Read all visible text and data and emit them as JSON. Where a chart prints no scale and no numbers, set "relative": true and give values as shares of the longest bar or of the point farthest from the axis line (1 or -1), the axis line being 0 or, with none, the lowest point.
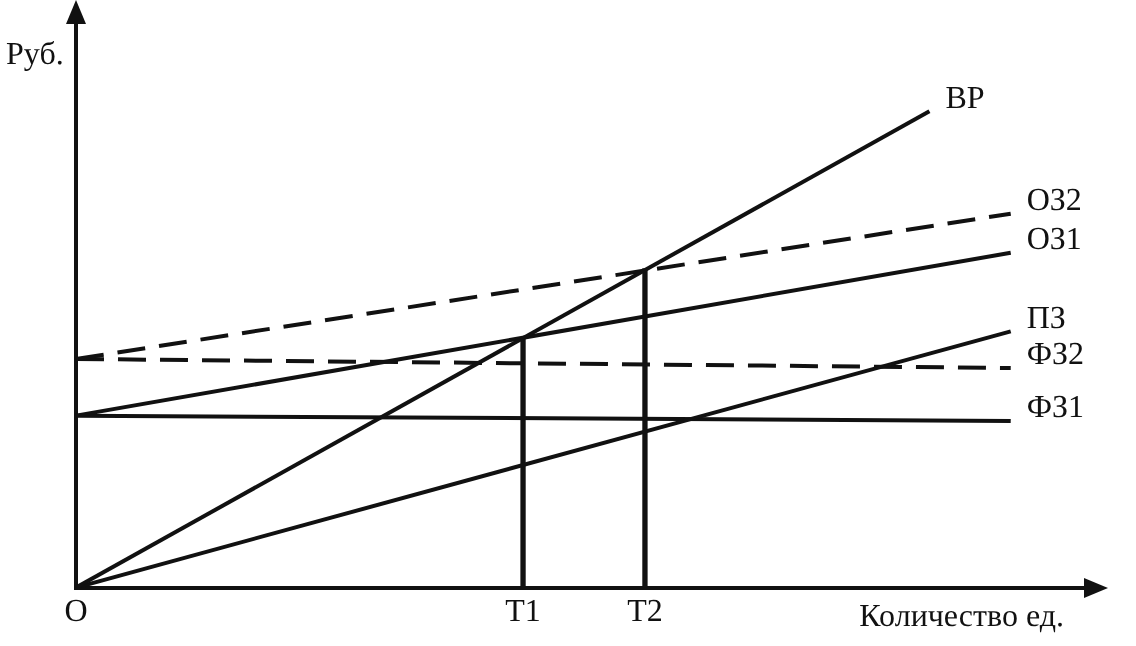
{
  "chart_data": {
    "type": "line",
    "relative": true,
    "xlabel": "Количество ед.",
    "ylabel": "Руб.",
    "categories": [
      "O",
      null,
      null,
      null,
      null,
      null,
      null,
      null,
      null,
      null,
      null,
      "T1",
      null,
      null,
      "T2",
      null,
      null,
      null,
      null,
      null,
      null,
      null,
      null,
      null,
      null,
      null
    ],
    "grid": false,
    "legend": false,
    "marker": "none",
    "series": [
      {
        "name": "ВР",
        "color": "#111111",
        "values": [
          0,
          null,
          null,
          null,
          null,
          null,
          null,
          null,
          null,
          null,
          null,
          null,
          null,
          null,
          null,
          null,
          null,
          null,
          null,
          null,
          null,
          1,
          null,
          null,
          null,
          null
        ]
      },
      {
        "name": "ОЗ2",
        "color": "#111111",
        "values": [
          0.48,
          null,
          null,
          null,
          null,
          null,
          null,
          null,
          null,
          null,
          null,
          null,
          null,
          null,
          null,
          null,
          null,
          null,
          null,
          null,
          null,
          null,
          null,
          0.785,
          null,
          null
        ],
        "line_style": "dashed"
      },
      {
        "name": "ОЗ1",
        "color": "#111111",
        "values": [
          0.361,
          null,
          null,
          null,
          null,
          null,
          null,
          null,
          null,
          null,
          null,
          null,
          null,
          null,
          null,
          null,
          null,
          null,
          null,
          null,
          null,
          null,
          null,
          0.703,
          null,
          null
        ]
      },
      {
        "name": "ПЗ",
        "color": "#111111",
        "values": [
          0,
          null,
          null,
          null,
          null,
          null,
          null,
          null,
          null,
          null,
          null,
          null,
          null,
          null,
          null,
          null,
          null,
          null,
          null,
          null,
          null,
          null,
          null,
          0.538,
          null,
          null
        ]
      },
      {
        "name": "ФЗ2",
        "color": "#111111",
        "values": [
          0.48,
          null,
          null,
          null,
          null,
          null,
          null,
          null,
          null,
          null,
          null,
          null,
          null,
          null,
          null,
          null,
          null,
          null,
          null,
          null,
          null,
          null,
          null,
          0.461,
          null,
          null
        ],
        "line_style": "dashed"
      },
      {
        "name": "ФЗ1",
        "color": "#111111",
        "values": [
          0.361,
          null,
          null,
          null,
          null,
          null,
          null,
          null,
          null,
          null,
          null,
          null,
          null,
          null,
          null,
          null,
          null,
          null,
          null,
          null,
          null,
          null,
          null,
          0.35,
          null,
          null
        ]
      },
      {
        "type": "bar",
        "color": "#111111",
        "values": [
          null,
          null,
          null,
          null,
          null,
          null,
          null,
          null,
          null,
          null,
          null,
          0.523,
          null,
          null,
          0.669,
          null,
          null,
          null,
          null,
          null,
          null,
          null,
          null,
          null,
          null,
          null
        ]
      }
    ]
  }
}
